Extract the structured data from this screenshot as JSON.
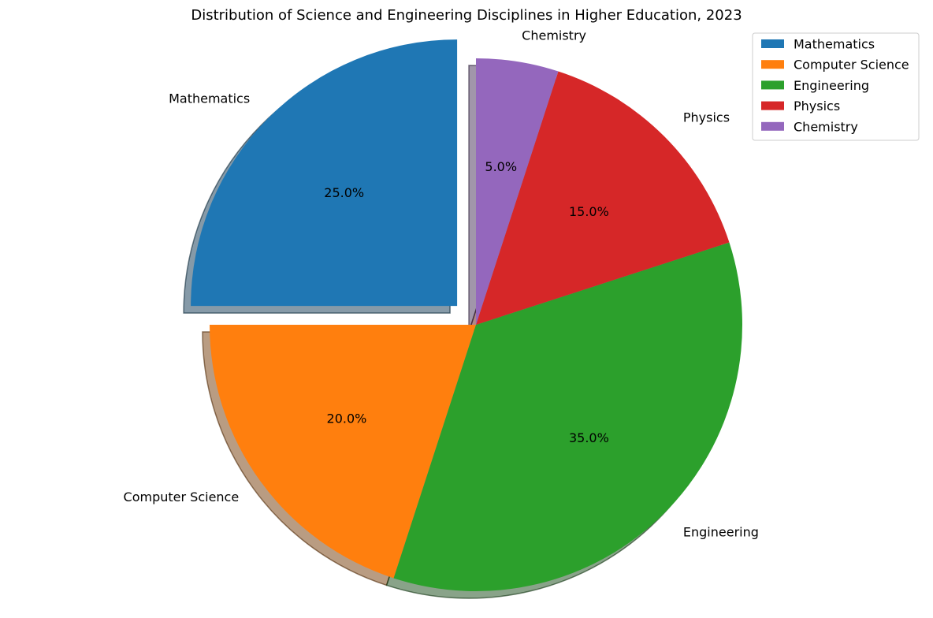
{
  "chart_data": {
    "type": "pie",
    "title": "Distribution of Science and Engineering Disciplines in Higher Education, 2023",
    "categories": [
      "Mathematics",
      "Computer Science",
      "Engineering",
      "Physics",
      "Chemistry"
    ],
    "values": [
      25,
      20,
      35,
      15,
      5
    ],
    "percent_labels": [
      "25.0%",
      "20.0%",
      "35.0%",
      "15.0%",
      "5.0%"
    ],
    "colors": [
      "#1f77b4",
      "#ff7f0e",
      "#2ca02c",
      "#d62728",
      "#9467bd"
    ],
    "exploded": [
      "Mathematics"
    ],
    "start_angle": 90,
    "direction": "counterclockwise",
    "shadow": true,
    "legend": {
      "placement": "top-right",
      "entries": [
        "Mathematics",
        "Computer Science",
        "Engineering",
        "Physics",
        "Chemistry"
      ]
    }
  }
}
